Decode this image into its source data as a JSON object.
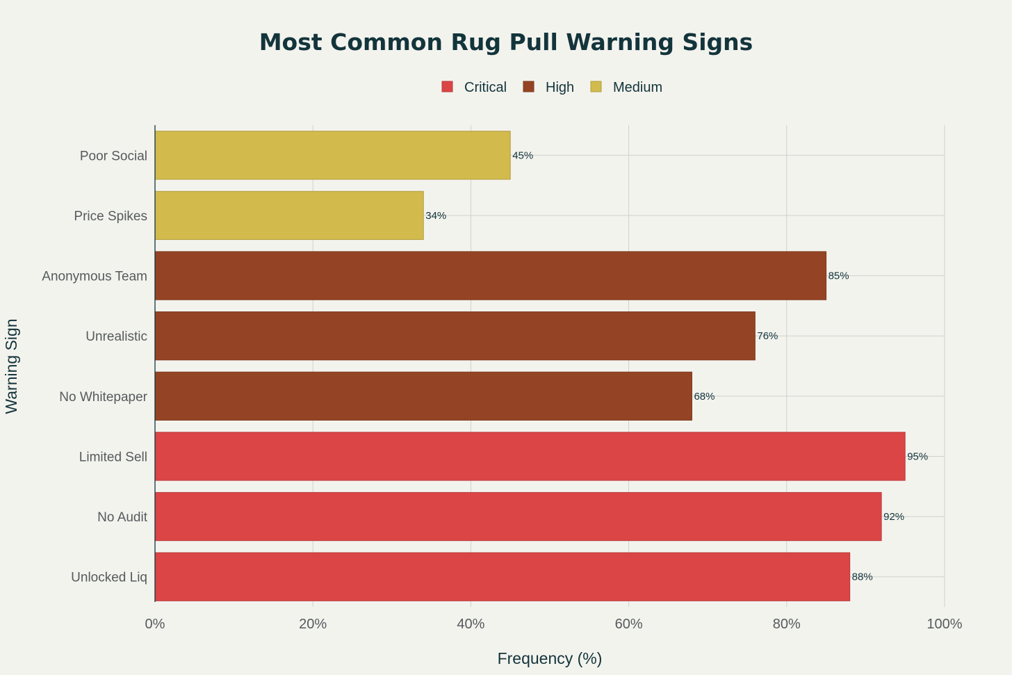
{
  "chart_data": {
    "type": "bar",
    "orientation": "horizontal",
    "title": "Most Common Rug Pull Warning Signs",
    "xlabel": "Frequency (%)",
    "ylabel": "Warning Sign",
    "xlim": [
      0,
      100
    ],
    "x_ticks": [
      0,
      20,
      40,
      60,
      80,
      100
    ],
    "x_tick_suffix": "%",
    "grid": true,
    "legend_position": "top-center",
    "legend": [
      {
        "name": "Critical",
        "color": "#db4545"
      },
      {
        "name": "High",
        "color": "#944424"
      },
      {
        "name": "Medium",
        "color": "#d2ba4c"
      }
    ],
    "categories": [
      "Unlocked Liq",
      "No Audit",
      "Limited Sell",
      "No Whitepaper",
      "Unrealistic",
      "Anonymous Team",
      "Price Spikes",
      "Poor Social"
    ],
    "values": [
      88,
      92,
      95,
      68,
      76,
      85,
      34,
      45
    ],
    "severity": [
      "Critical",
      "Critical",
      "Critical",
      "High",
      "High",
      "High",
      "Medium",
      "Medium"
    ],
    "data_labels": [
      "88%",
      "92%",
      "95%",
      "68%",
      "76%",
      "85%",
      "34%",
      "45%"
    ]
  }
}
